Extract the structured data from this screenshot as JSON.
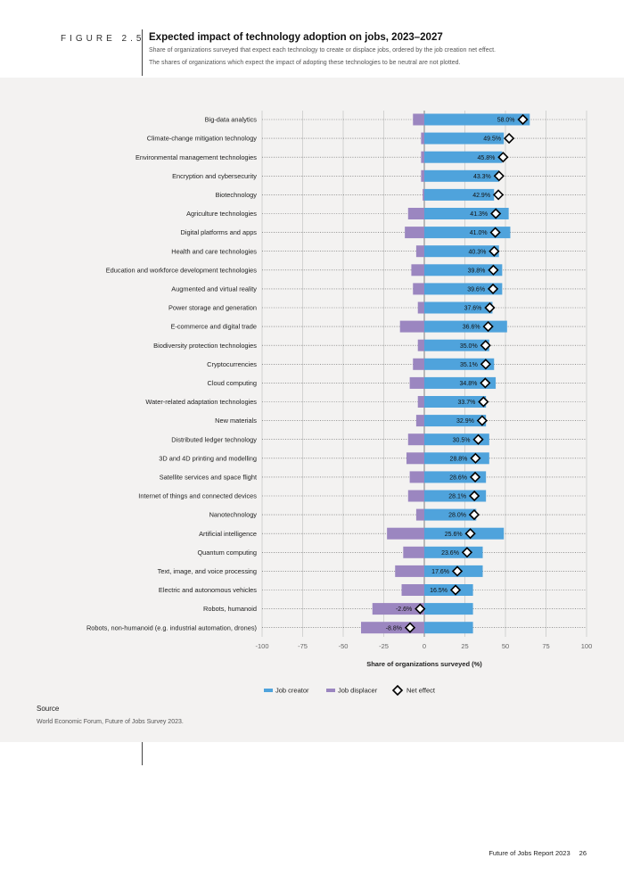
{
  "figure": {
    "label": "FIGURE 2.5",
    "title": "Expected impact of technology adoption on jobs, 2023–2027",
    "subtitle_1": "Share of organizations surveyed that expect each technology to create or displace jobs, ordered by the job creation net effect.",
    "subtitle_2": "The shares of organizations which expect the impact of adopting these technologies to be neutral are not plotted."
  },
  "chart_data": {
    "type": "bar",
    "orientation": "horizontal",
    "xlabel": "Share of organizations surveyed (%)",
    "xlim": [
      -100,
      100
    ],
    "xticks": [
      "-100",
      "-75",
      "-50",
      "-25",
      "0",
      "25",
      "50",
      "75",
      "100"
    ],
    "xtick_values": [
      -100,
      -75,
      -50,
      -25,
      0,
      25,
      50,
      75,
      100
    ],
    "categories": [
      "Big-data analytics",
      "Climate-change mitigation technology",
      "Environmental management technologies",
      "Encryption and cybersecurity",
      "Biotechnology",
      "Agriculture technologies",
      "Digital platforms and apps",
      "Health and care technologies",
      "Education and workforce development technologies",
      "Augmented and virtual reality",
      "Power storage and generation",
      "E-commerce and digital trade",
      "Biodiversity protection technologies",
      "Cryptocurrencies",
      "Cloud computing",
      "Water-related adaptation technologies",
      "New materials",
      "Distributed ledger technology",
      "3D and 4D printing and modelling",
      "Satellite services and space flight",
      "Internet of things and connected devices",
      "Nanotechnology",
      "Artificial intelligence",
      "Quantum computing",
      "Text, image, and voice processing",
      "Electric and autonomous vehicles",
      "Robots, humanoid",
      "Robots, non-humanoid (e.g. industrial automation, drones)"
    ],
    "series": [
      {
        "name": "Job creator",
        "color": "#4fa3dc",
        "values": [
          65,
          49,
          48,
          46,
          43,
          52,
          53,
          46,
          48,
          48,
          42,
          51,
          40,
          43,
          44,
          38,
          38,
          40,
          40,
          38,
          38,
          32,
          49,
          36,
          36,
          30,
          30,
          30
        ]
      },
      {
        "name": "Job displacer",
        "color": "#9b86c0",
        "values": [
          -7,
          -2,
          -2,
          -2,
          -1,
          -10,
          -12,
          -5,
          -8,
          -7,
          -4,
          -15,
          -4,
          -7,
          -9,
          -4,
          -5,
          -10,
          -11,
          -9,
          -10,
          -5,
          -23,
          -13,
          -18,
          -14,
          -32,
          -39
        ]
      },
      {
        "name": "Net effect",
        "color": "#000000",
        "values": [
          58.0,
          49.5,
          45.8,
          43.3,
          42.9,
          41.3,
          41.0,
          40.3,
          39.8,
          39.6,
          37.6,
          36.6,
          35.0,
          35.1,
          34.8,
          33.7,
          32.9,
          30.5,
          28.8,
          28.6,
          28.1,
          28.0,
          25.6,
          23.6,
          17.6,
          16.5,
          -2.6,
          -8.8
        ],
        "labels": [
          "58.0%",
          "49.5%",
          "45.8%",
          "43.3%",
          "42.9%",
          "41.3%",
          "41.0%",
          "40.3%",
          "39.8%",
          "39.6%",
          "37.6%",
          "36.6%",
          "35.0%",
          "35.1%",
          "34.8%",
          "33.7%",
          "32.9%",
          "30.5%",
          "28.8%",
          "28.6%",
          "28.1%",
          "28.0%",
          "25.6%",
          "23.6%",
          "17.6%",
          "16.5%",
          "-2.6%",
          "-8.8%"
        ]
      }
    ],
    "legend": [
      "Job creator",
      "Job displacer",
      "Net effect"
    ],
    "legend_position": "bottom-center",
    "colors": {
      "creator": "#4fa3dc",
      "displacer": "#9b86c0",
      "grid": "#888888",
      "panel": "#f3f2f1"
    }
  },
  "source": {
    "heading": "Source",
    "text": "World Economic Forum, Future of Jobs Survey 2023."
  },
  "footer": {
    "report": "Future of Jobs Report 2023",
    "page": "26"
  }
}
